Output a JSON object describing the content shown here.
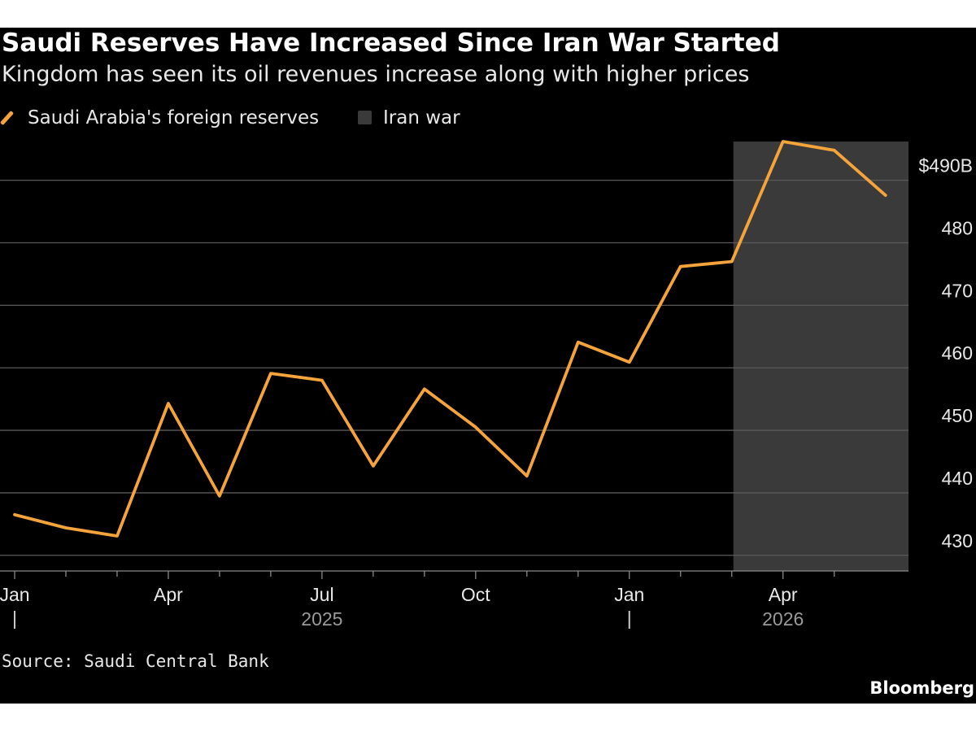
{
  "header": {
    "title": "Saudi Reserves Have Increased Since Iran War Started",
    "subtitle": "Kingdom has seen its oil revenues increase along with higher prices"
  },
  "legend": {
    "items": [
      {
        "label": "Saudi Arabia's foreign reserves",
        "color": "#f5a43b",
        "icon": "line-icon"
      },
      {
        "label": "Iran war",
        "color": "#3a3a3a",
        "icon": "square-swatch-icon"
      }
    ]
  },
  "footer": {
    "source": "Source: Saudi Central Bank",
    "brand": "Bloomberg"
  },
  "chart_data": {
    "type": "line",
    "title": "Saudi Reserves Have Increased Since Iran War Started",
    "subtitle": "Kingdom has seen its oil revenues increase along with higher prices",
    "x": [
      "2025-01",
      "2025-02",
      "2025-03",
      "2025-04",
      "2025-05",
      "2025-06",
      "2025-07",
      "2025-08",
      "2025-09",
      "2025-10",
      "2025-11",
      "2025-12",
      "2026-01",
      "2026-02",
      "2026-03",
      "2026-04",
      "2026-05",
      "2026-06"
    ],
    "series": [
      {
        "name": "Saudi Arabia's foreign reserves",
        "color": "#f5a43b",
        "values": [
          436.5,
          434.4,
          433.1,
          454.3,
          439.5,
          459.1,
          458.0,
          444.3,
          456.6,
          450.5,
          442.7,
          464.1,
          460.9,
          476.2,
          477.0,
          496.2,
          494.8,
          487.6
        ]
      }
    ],
    "shaded_ranges": [
      {
        "label": "Iran war",
        "start": "2026-03",
        "end": "2026-06",
        "color": "#3a3a3a"
      }
    ],
    "ylim": [
      427.5,
      496.2
    ],
    "y_ticks": [
      430,
      440,
      450,
      460,
      470,
      480,
      490
    ],
    "y_tick_labels": [
      "430",
      "440",
      "450",
      "460",
      "470",
      "480",
      "$490B"
    ],
    "x_ticks": [
      {
        "date": "2025-01",
        "label": "Jan",
        "year_marker": true
      },
      {
        "date": "2025-04",
        "label": "Apr"
      },
      {
        "date": "2025-07",
        "label": "Jul"
      },
      {
        "date": "2025-10",
        "label": "Oct"
      },
      {
        "date": "2026-01",
        "label": "Jan",
        "year_marker": true
      },
      {
        "date": "2026-04",
        "label": "Apr"
      }
    ],
    "minor_x_ticks": [
      "2025-02",
      "2025-03",
      "2025-05",
      "2025-06",
      "2025-08",
      "2025-09",
      "2025-11",
      "2025-12",
      "2026-02",
      "2026-03",
      "2026-05"
    ],
    "year_labels": [
      {
        "center": "2025-07",
        "label": "2025"
      },
      {
        "center": "2026-04",
        "label": "2026"
      }
    ],
    "y_axis_position": "right",
    "grid": true,
    "legend_position": "top-left"
  }
}
